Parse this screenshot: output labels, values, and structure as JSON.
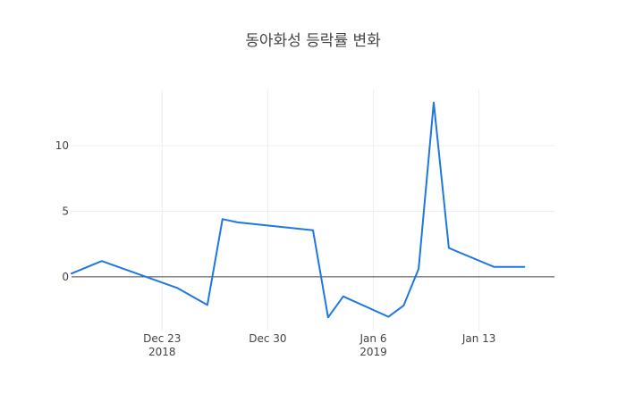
{
  "chart_data": {
    "type": "line",
    "title": "동아화성 등락률 변화",
    "xlabel": "",
    "ylabel": "",
    "x": [
      "2018-12-17",
      "2018-12-19",
      "2018-12-24",
      "2018-12-26",
      "2018-12-27",
      "2018-12-28",
      "2019-01-02",
      "2019-01-03",
      "2019-01-04",
      "2019-01-07",
      "2019-01-08",
      "2019-01-09",
      "2019-01-10",
      "2019-01-11",
      "2019-01-14",
      "2019-01-15",
      "2019-01-16"
    ],
    "series": [
      {
        "values": [
          0.25,
          1.2,
          -0.85,
          -2.15,
          4.4,
          4.15,
          3.55,
          -3.1,
          -1.5,
          -3.05,
          -2.2,
          0.6,
          13.3,
          2.2,
          0.75,
          0.75,
          0.75
        ]
      }
    ],
    "xlim": [
      "2018-12-17",
      "2019-01-18"
    ],
    "ylim": [
      -4.1,
      14.3
    ],
    "x_ticks": [
      {
        "date": "2018-12-23",
        "label": "Dec 23",
        "sublabel": "2018"
      },
      {
        "date": "2018-12-30",
        "label": "Dec 30",
        "sublabel": ""
      },
      {
        "date": "2019-01-06",
        "label": "Jan 6",
        "sublabel": "2019"
      },
      {
        "date": "2019-01-13",
        "label": "Jan 13",
        "sublabel": ""
      }
    ],
    "y_ticks": [
      0,
      5,
      10
    ],
    "grid": true,
    "line_color": "#1f77e0"
  }
}
